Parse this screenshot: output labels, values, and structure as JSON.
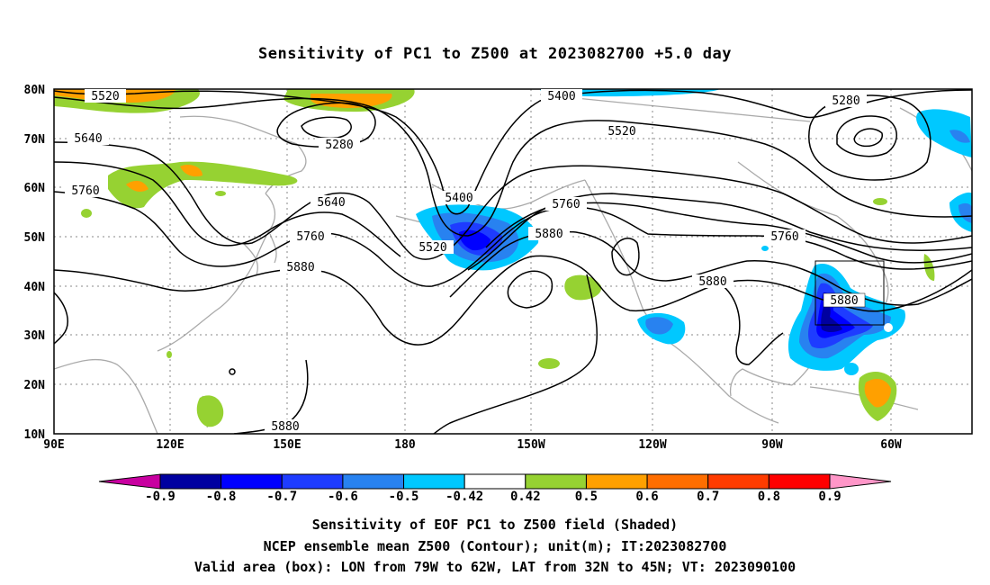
{
  "title": "Sensitivity of PC1 to Z500 at 2023082700 +5.0 day",
  "lat_labels": [
    "80N",
    "70N",
    "60N",
    "50N",
    "40N",
    "30N",
    "20N",
    "10N"
  ],
  "lon_labels": [
    "90E",
    "120E",
    "150E",
    "180",
    "150W",
    "120W",
    "90W",
    "60W"
  ],
  "contour_labels": [
    "5520",
    "5640",
    "5760",
    "5280",
    "5400",
    "5520",
    "5640",
    "5760",
    "5880",
    "5400",
    "5520",
    "5760",
    "5880",
    "5280",
    "5760",
    "5880",
    "5880",
    "5880"
  ],
  "colorbar": {
    "labels": [
      "-0.9",
      "-0.8",
      "-0.7",
      "-0.6",
      "-0.5",
      "-0.42",
      "0.42",
      "0.5",
      "0.6",
      "0.7",
      "0.8",
      "0.9"
    ],
    "colors": [
      "#c800a0",
      "#0000a0",
      "#0000ff",
      "#1e3cff",
      "#2882f0",
      "#00c8ff",
      "#ffffff",
      "#96d232",
      "#ffa000",
      "#ff6e00",
      "#ff3c00",
      "#ff0000",
      "#ff96c8"
    ]
  },
  "captions": {
    "line1": "Sensitivity of EOF PC1 to Z500 field (Shaded)",
    "line2": "NCEP ensemble mean Z500 (Contour); unit(m); IT:2023082700",
    "line3": "Valid area (box): LON from 79W to 62W, LAT from 32N to 45N; VT: 2023090100"
  },
  "colors": {
    "contour": "#000000",
    "coastline": "#aaaaaa",
    "grid": "#888888"
  }
}
